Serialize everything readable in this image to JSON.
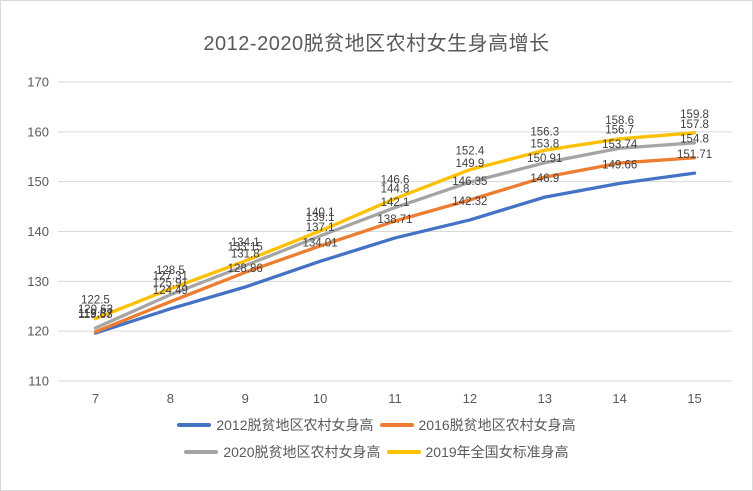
{
  "title": "2012-2020脱贫地区农村女生身高增长",
  "colors": {
    "background": "#ffffff",
    "frame_border": "#d9d9d9",
    "gridline": "#d9d9d9",
    "axis_text": "#595959",
    "title_text": "#595959",
    "data_label_text": "#404040"
  },
  "chart_data": {
    "type": "line",
    "title": "2012-2020脱贫地区农村女生身高增长",
    "x": [
      7,
      8,
      9,
      10,
      11,
      12,
      13,
      14,
      15
    ],
    "xlabel": "",
    "ylabel": "",
    "ylim": [
      110,
      170
    ],
    "yticks": [
      110,
      120,
      130,
      140,
      150,
      160,
      170
    ],
    "grid": true,
    "legend_position": "bottom",
    "data_labels": "above-points",
    "series": [
      {
        "name": "2012脱贫地区农村女身高",
        "color": "#4472C4",
        "values": [
          119.63,
          124.49,
          128.86,
          134.01,
          138.71,
          142.32,
          146.9,
          149.66,
          151.71
        ]
      },
      {
        "name": "2016脱贫地区农村女身高",
        "color": "#ED7D31",
        "values": [
          119.87,
          125.91,
          131.8,
          137.1,
          142.1,
          146.35,
          150.91,
          153.74,
          154.8
        ]
      },
      {
        "name": "2020脱贫地区农村女身高",
        "color": "#A5A5A5",
        "values": [
          120.63,
          127.31,
          133.15,
          139.1,
          144.8,
          149.9,
          153.8,
          156.7,
          157.8
        ]
      },
      {
        "name": "2019年全国女标准身高",
        "color": "#FFC000",
        "values": [
          122.5,
          128.5,
          134.1,
          140.1,
          146.6,
          152.4,
          156.3,
          158.6,
          159.8
        ]
      }
    ]
  }
}
